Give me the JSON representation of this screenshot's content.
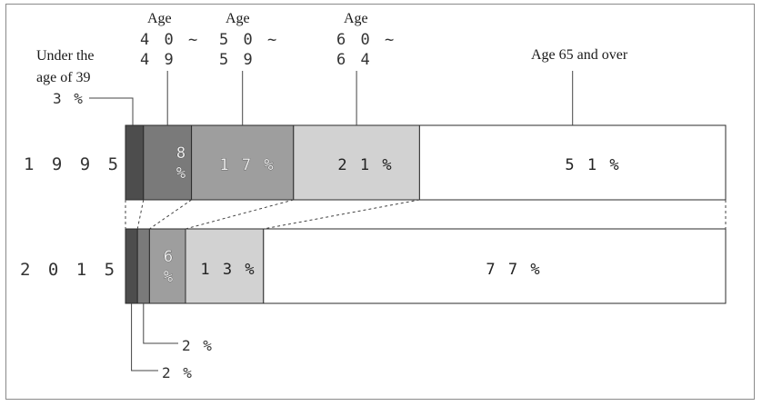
{
  "chart_data": {
    "type": "bar",
    "orientation": "horizontal",
    "stacked": "100%",
    "categories": [
      "1995",
      "2015"
    ],
    "series": [
      {
        "name": "Under the age of 39",
        "values": [
          3,
          2
        ],
        "labels": [
          "3%",
          "2%"
        ],
        "color": "#4d4d4d"
      },
      {
        "name": "Age 40~49",
        "values": [
          8,
          2
        ],
        "labels": [
          "8%",
          "2%"
        ],
        "color": "#7a7a7a"
      },
      {
        "name": "Age 50~59",
        "values": [
          17,
          6
        ],
        "labels": [
          "17%",
          "6%"
        ],
        "color": "#9e9e9e"
      },
      {
        "name": "Age 60~64",
        "values": [
          21,
          13
        ],
        "labels": [
          "21%",
          "13%"
        ],
        "color": "#d2d2d2"
      },
      {
        "name": "Age 65 and over",
        "values": [
          51,
          77
        ],
        "labels": [
          "51%",
          "77%"
        ],
        "color": "#ffffff"
      }
    ],
    "category_labels": {
      "under39": [
        "Under the",
        "age of 39"
      ],
      "age40": [
        "Age",
        "4 0 ~",
        "4 9"
      ],
      "age50": [
        "Age",
        "5 0 ~",
        "5 9"
      ],
      "age60": [
        "Age",
        "6 0 ~",
        "6 4"
      ],
      "age65": [
        "Age 65 and over"
      ]
    },
    "year_labels": [
      "1 9 9 5",
      "2 0 1 5"
    ],
    "bar_texts": {
      "r1995": {
        "s40a": "8",
        "s40b": "%",
        "s50": "1 7 %",
        "s60": "2 1 %",
        "s65": "5 1 %"
      },
      "r2015": {
        "s50a": "6",
        "s50b": "%",
        "s60": "1 3 %",
        "s65": "7 7 %"
      }
    },
    "callouts": {
      "under39_1995": "3 %",
      "under39_2015": "2 %",
      "age40_2015": "2 %"
    }
  }
}
